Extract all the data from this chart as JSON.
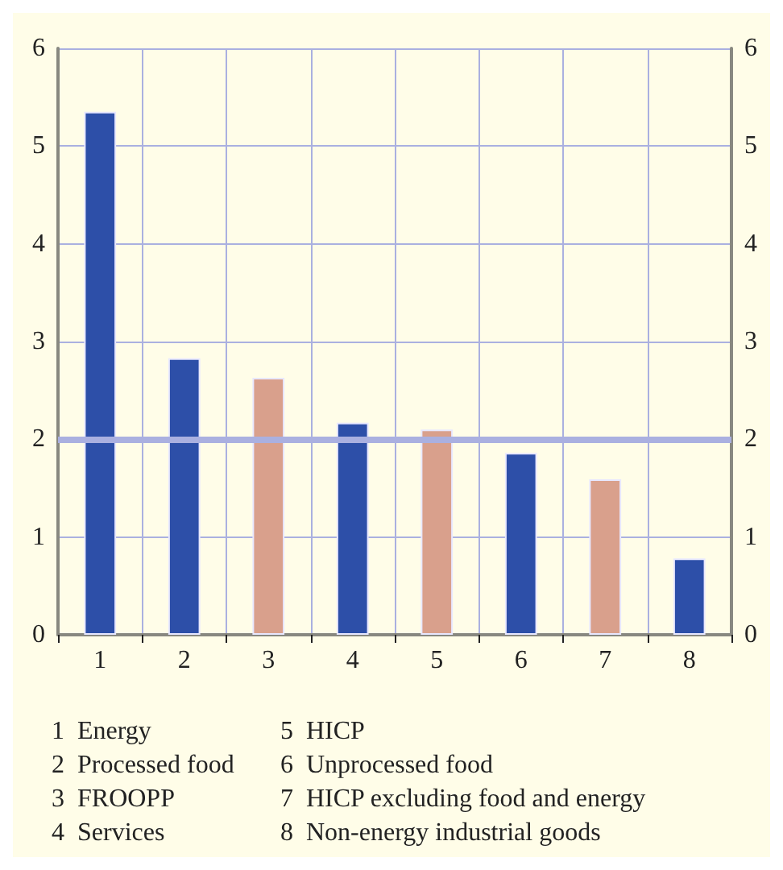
{
  "chart_data": {
    "type": "bar",
    "categories": [
      "1",
      "2",
      "3",
      "4",
      "5",
      "6",
      "7",
      "8"
    ],
    "values": [
      5.35,
      2.83,
      2.63,
      2.17,
      2.1,
      1.86,
      1.59,
      0.78
    ],
    "colors": [
      "#2d4fa8",
      "#2d4fa8",
      "#d9a08c",
      "#2d4fa8",
      "#d9a08c",
      "#2d4fa8",
      "#d9a08c",
      "#2d4fa8"
    ],
    "ylim": [
      0,
      6
    ],
    "yticks": [
      0,
      1,
      2,
      3,
      4,
      5,
      6
    ],
    "y2lim": [
      0,
      6
    ],
    "y2ticks": [
      0,
      1,
      2,
      3,
      4,
      5,
      6
    ],
    "grid": true,
    "ref_lines": [
      {
        "axis": "y",
        "value": 2,
        "color": "#aab0e0"
      }
    ],
    "annotations": [
      "1  Energy",
      "2  Processed food",
      "3  FROOPP",
      "4  Services",
      "5  HICP",
      "6  Unprocessed food",
      "7  HICP excluding food and energy",
      "8  Non-energy industrial goods"
    ]
  }
}
